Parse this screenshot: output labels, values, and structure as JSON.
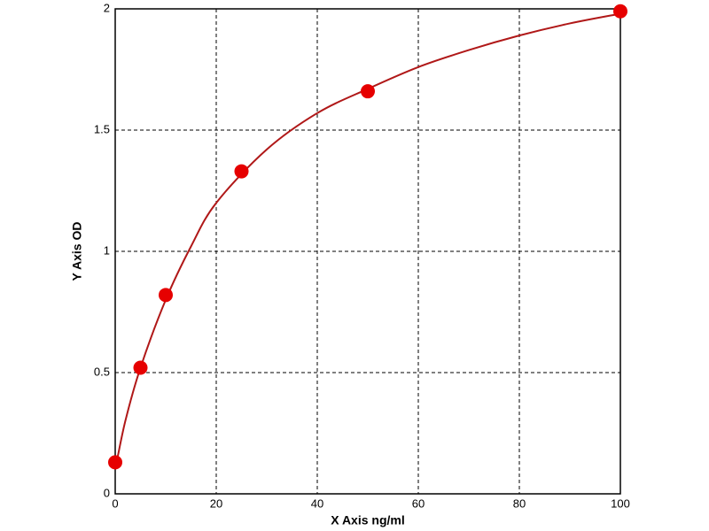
{
  "chart_data": {
    "type": "scatter",
    "x_label": "X Axis ng/ml",
    "y_label": "Y Axis OD",
    "xlim": [
      0,
      100
    ],
    "ylim": [
      0,
      2
    ],
    "xticks": [
      0,
      20,
      40,
      60,
      80,
      100
    ],
    "yticks": [
      0,
      0.5,
      1,
      1.5,
      2
    ],
    "grid": true,
    "series": [
      {
        "type": "scatter",
        "color": "#e60000",
        "x": [
          0,
          5,
          10,
          25,
          50,
          100
        ],
        "values": [
          0.13,
          0.52,
          0.82,
          1.33,
          1.66,
          1.99
        ]
      },
      {
        "type": "line",
        "color": "#b01818",
        "x": [
          0,
          2,
          5,
          10,
          15,
          20,
          30,
          40,
          50,
          60,
          70,
          80,
          90,
          100
        ],
        "values": [
          0.1,
          0.3,
          0.52,
          0.8,
          1.02,
          1.2,
          1.42,
          1.57,
          1.67,
          1.76,
          1.83,
          1.89,
          1.94,
          1.98
        ]
      }
    ]
  }
}
